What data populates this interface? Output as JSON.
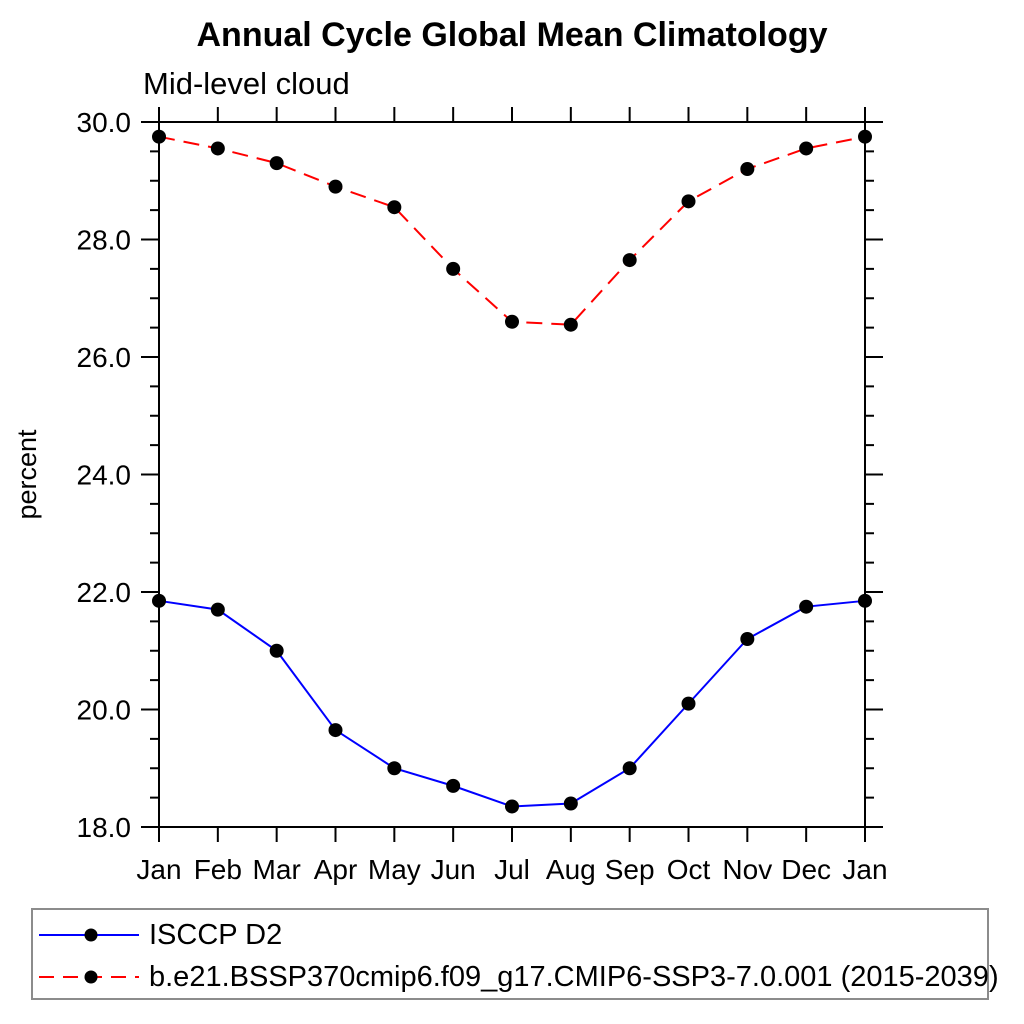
{
  "page": {
    "background": "#ffffff"
  },
  "chart_data": {
    "type": "line",
    "title": "Annual Cycle Global Mean Climatology",
    "subtitle": "Mid-level cloud",
    "ylabel": "percent",
    "xlabel": "",
    "categories": [
      "Jan",
      "Feb",
      "Mar",
      "Apr",
      "May",
      "Jun",
      "Jul",
      "Aug",
      "Sep",
      "Oct",
      "Nov",
      "Dec",
      "Jan"
    ],
    "ylim": [
      18.0,
      30.0
    ],
    "ytick_major": [
      18.0,
      20.0,
      22.0,
      24.0,
      26.0,
      28.0,
      30.0
    ],
    "ytick_major_labels": [
      "18.0",
      "20.0",
      "22.0",
      "24.0",
      "26.0",
      "28.0",
      "30.0"
    ],
    "ytick_minor_step": 0.5,
    "grid": false,
    "legend_position": "bottom-left-box",
    "axis_color": "#000000",
    "marker_color": "#000000",
    "series": [
      {
        "name": "ISCCP D2",
        "color": "#0000ff",
        "line_style": "solid",
        "marker": "circle",
        "values": [
          21.85,
          21.7,
          21.0,
          19.65,
          19.0,
          18.7,
          18.35,
          18.4,
          19.0,
          20.1,
          21.2,
          21.75,
          21.85
        ]
      },
      {
        "name": "b.e21.BSSP370cmip6.f09_g17.CMIP6-SSP3-7.0.001 (2015-2039)",
        "color": "#ff0000",
        "line_style": "dashed",
        "marker": "circle",
        "values": [
          29.75,
          29.55,
          29.3,
          28.9,
          28.55,
          27.5,
          26.6,
          26.55,
          27.65,
          28.65,
          29.2,
          29.55,
          29.75
        ]
      }
    ]
  }
}
